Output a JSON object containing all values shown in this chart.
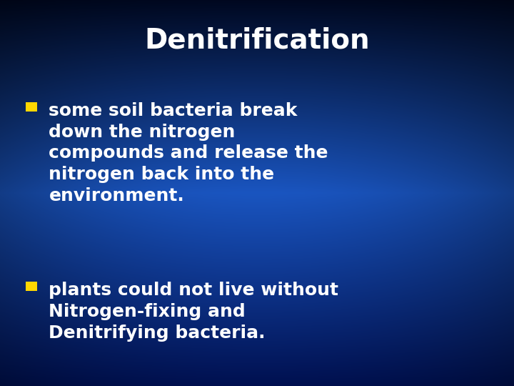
{
  "title": "Denitrification",
  "title_color": "#FFFFFF",
  "title_fontsize": 28,
  "bullet_color": "#FFD700",
  "bullet_text_color": "#FFFFFF",
  "bullet_fontsize": 18,
  "bullet1_lines": [
    "some soil bacteria break",
    "down the nitrogen",
    "compounds and release the",
    "nitrogen back into the",
    "environment."
  ],
  "bullet2_lines": [
    "plants could not live without",
    "Nitrogen-fixing and",
    "Denitrifying bacteria."
  ],
  "bg_top": "#000820",
  "bg_bottom": "#1A55C0",
  "figsize": [
    7.2,
    5.4
  ],
  "dpi": 100
}
